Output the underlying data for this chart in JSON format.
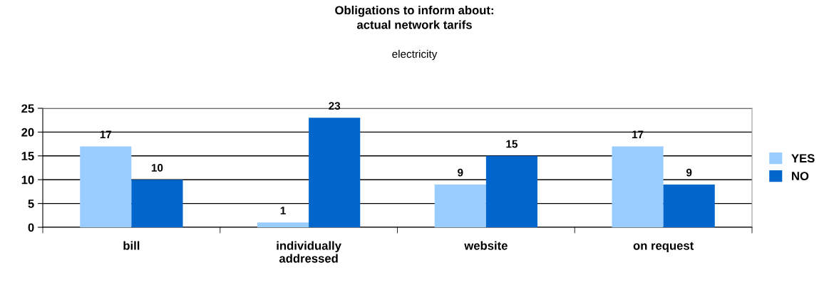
{
  "chart_data": {
    "type": "bar",
    "title": "Obligations to inform about:\nactual network tarifs",
    "subtitle": "electricity",
    "categories": [
      "bill",
      "individually\naddressed",
      "website",
      "on request"
    ],
    "series": [
      {
        "name": "YES",
        "color": "#99ccff",
        "values": [
          17,
          1,
          9,
          17
        ]
      },
      {
        "name": "NO",
        "color": "#0066cc",
        "values": [
          10,
          23,
          15,
          9
        ]
      }
    ],
    "ylim": [
      0,
      25
    ],
    "yticks": [
      0,
      5,
      10,
      15,
      20,
      25
    ],
    "grid": "y",
    "legend": "right",
    "data_labels": true
  }
}
